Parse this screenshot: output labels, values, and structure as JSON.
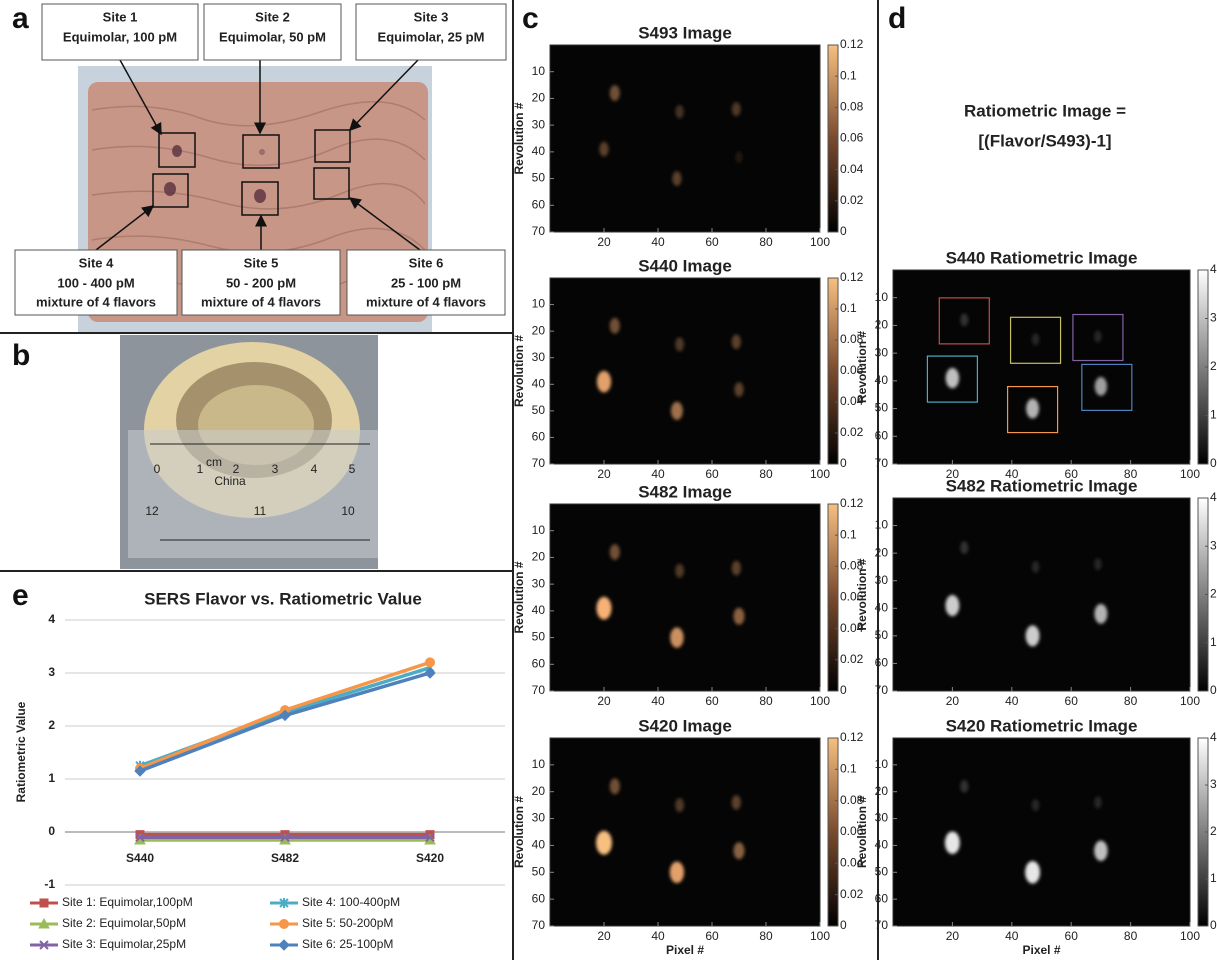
{
  "panel_labels": [
    "a",
    "b",
    "c",
    "d",
    "e"
  ],
  "panel_a": {
    "sites": [
      {
        "name": "Site 1",
        "color": "#c0504d",
        "lines": [
          "Equimolar, 100 pM"
        ]
      },
      {
        "name": "Site 2",
        "color": "#8fae4c",
        "lines": [
          "Equimolar, 50 pM"
        ]
      },
      {
        "name": "Site 3",
        "color": "#7030a0",
        "lines": [
          "Equimolar, 25 pM"
        ]
      },
      {
        "name": "Site 4",
        "color": "#4bacc6",
        "lines": [
          "100 - 400 pM",
          "mixture of 4 flavors"
        ]
      },
      {
        "name": "Site 5",
        "color": "#e46c0a",
        "lines": [
          "50 - 200 pM",
          "mixture of 4 flavors"
        ]
      },
      {
        "name": "Site 6",
        "color": "#4f81bd",
        "lines": [
          "25 - 100 pM",
          "mixture of 4 flavors"
        ]
      }
    ]
  },
  "panel_b": {
    "ruler_labels": [
      "0",
      "1",
      "cm",
      "2",
      "3",
      "4",
      "5",
      "China",
      "12",
      "11",
      "10"
    ]
  },
  "panel_c": [
    {
      "type": "heatmap",
      "title": "S493 Image",
      "ylabel": "Revolution #",
      "xlim": [
        0,
        100
      ],
      "ylim": [
        70,
        0
      ],
      "xticks": [
        20,
        40,
        60,
        80,
        100
      ],
      "yticks": [
        10,
        20,
        30,
        40,
        50,
        60,
        70
      ],
      "clim": [
        0,
        0.12
      ],
      "cticks": [
        0,
        0.02,
        0.04,
        0.06,
        0.08,
        0.1,
        0.12
      ],
      "colormap": "copper",
      "spots": [
        {
          "x": 24,
          "y": 18,
          "value": 0.05
        },
        {
          "x": 48,
          "y": 25,
          "value": 0.03
        },
        {
          "x": 69,
          "y": 24,
          "value": 0.035
        },
        {
          "x": 20,
          "y": 39,
          "value": 0.04
        },
        {
          "x": 70,
          "y": 42,
          "value": 0.015
        },
        {
          "x": 47,
          "y": 50,
          "value": 0.04
        }
      ]
    },
    {
      "type": "heatmap",
      "title": "S440 Image",
      "ylabel": "Revolution #",
      "xlim": [
        0,
        100
      ],
      "ylim": [
        70,
        0
      ],
      "xticks": [
        20,
        40,
        60,
        80,
        100
      ],
      "yticks": [
        10,
        20,
        30,
        40,
        50,
        60,
        70
      ],
      "clim": [
        0,
        0.12
      ],
      "cticks": [
        0,
        0.02,
        0.04,
        0.06,
        0.08,
        0.1,
        0.12
      ],
      "colormap": "copper",
      "spots": [
        {
          "x": 24,
          "y": 18,
          "value": 0.05
        },
        {
          "x": 48,
          "y": 25,
          "value": 0.035
        },
        {
          "x": 69,
          "y": 24,
          "value": 0.04
        },
        {
          "x": 20,
          "y": 39,
          "value": 0.1
        },
        {
          "x": 70,
          "y": 42,
          "value": 0.04
        },
        {
          "x": 47,
          "y": 50,
          "value": 0.07
        }
      ]
    },
    {
      "type": "heatmap",
      "title": "S482 Image",
      "ylabel": "Revolution #",
      "xlim": [
        0,
        100
      ],
      "ylim": [
        70,
        0
      ],
      "xticks": [
        20,
        40,
        60,
        80,
        100
      ],
      "yticks": [
        10,
        20,
        30,
        40,
        50,
        60,
        70
      ],
      "clim": [
        0,
        0.12
      ],
      "cticks": [
        0,
        0.02,
        0.04,
        0.06,
        0.08,
        0.1,
        0.12
      ],
      "colormap": "copper",
      "spots": [
        {
          "x": 24,
          "y": 18,
          "value": 0.05
        },
        {
          "x": 48,
          "y": 25,
          "value": 0.035
        },
        {
          "x": 69,
          "y": 24,
          "value": 0.04
        },
        {
          "x": 20,
          "y": 39,
          "value": 0.11
        },
        {
          "x": 70,
          "y": 42,
          "value": 0.06
        },
        {
          "x": 47,
          "y": 50,
          "value": 0.09
        }
      ]
    },
    {
      "type": "heatmap",
      "title": "S420 Image",
      "ylabel": "Revolution #",
      "xlabel": "Pixel #",
      "xlim": [
        0,
        100
      ],
      "ylim": [
        70,
        0
      ],
      "xticks": [
        20,
        40,
        60,
        80,
        100
      ],
      "yticks": [
        10,
        20,
        30,
        40,
        50,
        60,
        70
      ],
      "clim": [
        0,
        0.12
      ],
      "cticks": [
        0,
        0.02,
        0.04,
        0.06,
        0.08,
        0.1,
        0.12
      ],
      "colormap": "copper",
      "spots": [
        {
          "x": 24,
          "y": 18,
          "value": 0.05
        },
        {
          "x": 48,
          "y": 25,
          "value": 0.035
        },
        {
          "x": 69,
          "y": 24,
          "value": 0.04
        },
        {
          "x": 20,
          "y": 39,
          "value": 0.12
        },
        {
          "x": 70,
          "y": 42,
          "value": 0.06
        },
        {
          "x": 47,
          "y": 50,
          "value": 0.1
        }
      ]
    }
  ],
  "panel_d": {
    "title_lines": [
      "Ratiometric Image =",
      "[(Flavor/S493)-1]"
    ],
    "images": [
      {
        "type": "heatmap",
        "title": "S440 Ratiometric Image",
        "ylabel": "Revolution #",
        "xlim": [
          0,
          100
        ],
        "ylim": [
          70,
          0
        ],
        "xticks": [
          20,
          40,
          60,
          80,
          100
        ],
        "yticks": [
          10,
          20,
          30,
          40,
          50,
          60,
          70
        ],
        "clim": [
          0,
          4
        ],
        "cticks": [
          0,
          1,
          2,
          3,
          4
        ],
        "colormap": "gray",
        "spots": [
          {
            "x": 24,
            "y": 18,
            "value": 0.8
          },
          {
            "x": 48,
            "y": 25,
            "value": 0.6
          },
          {
            "x": 69,
            "y": 24,
            "value": 0.6
          },
          {
            "x": 20,
            "y": 39,
            "value": 3
          },
          {
            "x": 70,
            "y": 42,
            "value": 2.5
          },
          {
            "x": 47,
            "y": 50,
            "value": 2.8
          }
        ]
      },
      {
        "type": "heatmap",
        "title": "S482 Ratiometric Image",
        "ylabel": "Revolution #",
        "xlim": [
          0,
          100
        ],
        "ylim": [
          70,
          0
        ],
        "xticks": [
          20,
          40,
          60,
          80,
          100
        ],
        "yticks": [
          10,
          20,
          30,
          40,
          50,
          60,
          70
        ],
        "clim": [
          0,
          4
        ],
        "cticks": [
          0,
          1,
          2,
          3,
          4
        ],
        "colormap": "gray",
        "spots": [
          {
            "x": 24,
            "y": 18,
            "value": 0.8
          },
          {
            "x": 48,
            "y": 25,
            "value": 0.6
          },
          {
            "x": 69,
            "y": 24,
            "value": 0.6
          },
          {
            "x": 20,
            "y": 39,
            "value": 3.2
          },
          {
            "x": 70,
            "y": 42,
            "value": 2.8
          },
          {
            "x": 47,
            "y": 50,
            "value": 3.2
          }
        ]
      },
      {
        "type": "heatmap",
        "title": "S420 Ratiometric Image",
        "ylabel": "Revolution #",
        "xlabel": "Pixel #",
        "xlim": [
          0,
          100
        ],
        "ylim": [
          70,
          0
        ],
        "xticks": [
          20,
          40,
          60,
          80,
          100
        ],
        "yticks": [
          10,
          20,
          30,
          40,
          50,
          60,
          70
        ],
        "clim": [
          0,
          4
        ],
        "cticks": [
          0,
          1,
          2,
          3,
          4
        ],
        "colormap": "gray",
        "spots": [
          {
            "x": 24,
            "y": 18,
            "value": 0.8
          },
          {
            "x": 48,
            "y": 25,
            "value": 0.6
          },
          {
            "x": 69,
            "y": 24,
            "value": 0.6
          },
          {
            "x": 20,
            "y": 39,
            "value": 3.6
          },
          {
            "x": 70,
            "y": 42,
            "value": 3
          },
          {
            "x": 47,
            "y": 50,
            "value": 3.6
          }
        ]
      }
    ]
  },
  "chart_data": {
    "type": "line",
    "title": "SERS Flavor vs. Ratiometric Value",
    "ylabel": "Ratiometric Value",
    "categories": [
      "S440",
      "S482",
      "S420"
    ],
    "ylim": [
      -1,
      4
    ],
    "yticks": [
      -1,
      0,
      1,
      2,
      3,
      4
    ],
    "grid": true,
    "series": [
      {
        "name": "Site 1: Equimolar,100pM",
        "color": "#c0504d",
        "marker": "square",
        "values": [
          -0.05,
          -0.05,
          -0.05
        ]
      },
      {
        "name": "Site 2: Equimolar,50pM",
        "color": "#9bbb59",
        "marker": "triangle",
        "values": [
          -0.15,
          -0.15,
          -0.15
        ]
      },
      {
        "name": "Site 3: Equimolar,25pM",
        "color": "#8064a2",
        "marker": "x",
        "values": [
          -0.1,
          -0.1,
          -0.1
        ]
      },
      {
        "name": "Site 4: 100-400pM",
        "color": "#4bacc6",
        "marker": "star",
        "values": [
          1.25,
          2.25,
          3.1
        ]
      },
      {
        "name": "Site 5: 50-200pM",
        "color": "#f79646",
        "marker": "circle",
        "values": [
          1.2,
          2.3,
          3.2
        ]
      },
      {
        "name": "Site 6: 25-100pM",
        "color": "#4f81bd",
        "marker": "diamond",
        "values": [
          1.15,
          2.2,
          3.0
        ]
      }
    ]
  }
}
